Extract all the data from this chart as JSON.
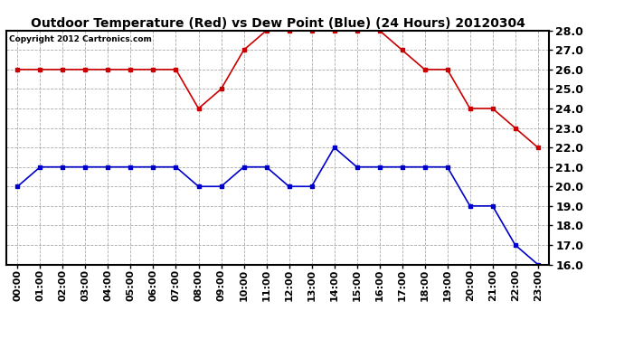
{
  "title": "Outdoor Temperature (Red) vs Dew Point (Blue) (24 Hours) 20120304",
  "copyright_text": "Copyright 2012 Cartronics.com",
  "hours": [
    "00:00",
    "01:00",
    "02:00",
    "03:00",
    "04:00",
    "05:00",
    "06:00",
    "07:00",
    "08:00",
    "09:00",
    "10:00",
    "11:00",
    "12:00",
    "13:00",
    "14:00",
    "15:00",
    "16:00",
    "17:00",
    "18:00",
    "19:00",
    "20:00",
    "21:00",
    "22:00",
    "23:00"
  ],
  "temp_red": [
    26.0,
    26.0,
    26.0,
    26.0,
    26.0,
    26.0,
    26.0,
    26.0,
    24.0,
    25.0,
    27.0,
    28.0,
    28.0,
    28.0,
    28.0,
    28.0,
    28.0,
    27.0,
    26.0,
    26.0,
    24.0,
    24.0,
    23.0,
    22.0
  ],
  "dew_blue": [
    20.0,
    21.0,
    21.0,
    21.0,
    21.0,
    21.0,
    21.0,
    21.0,
    20.0,
    20.0,
    21.0,
    21.0,
    20.0,
    20.0,
    22.0,
    21.0,
    21.0,
    21.0,
    21.0,
    21.0,
    19.0,
    19.0,
    17.0,
    16.0
  ],
  "ylim_min": 16.0,
  "ylim_max": 28.0,
  "background_color": "#ffffff",
  "plot_bg_color": "#ffffff",
  "grid_color": "#aaaaaa",
  "red_color": "#cc0000",
  "blue_color": "#0000cc",
  "title_fontsize": 10,
  "copyright_fontsize": 6.5,
  "tick_fontsize": 8,
  "ytick_fontsize": 9,
  "marker": "s",
  "marker_size": 3,
  "line_width": 1.2
}
